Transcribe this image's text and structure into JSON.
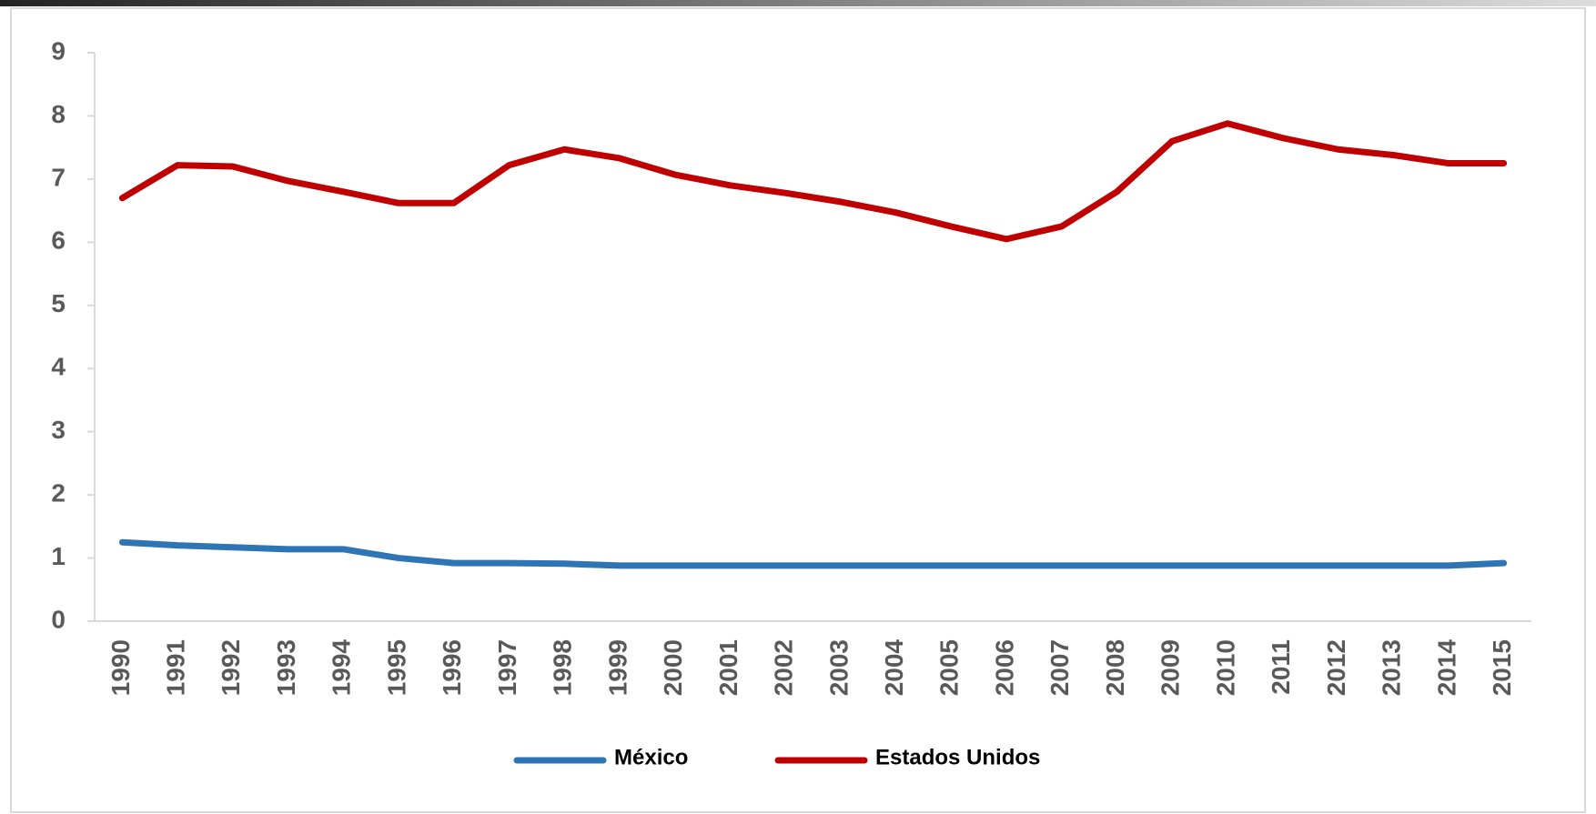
{
  "chart_data": {
    "type": "line",
    "categories": [
      "1990",
      "1991",
      "1992",
      "1993",
      "1994",
      "1995",
      "1996",
      "1997",
      "1998",
      "1999",
      "2000",
      "2001",
      "2002",
      "2003",
      "2004",
      "2005",
      "2006",
      "2007",
      "2008",
      "2009",
      "2010",
      "2011",
      "2012",
      "2013",
      "2014",
      "2015"
    ],
    "series": [
      {
        "name": "México",
        "color": "#2e75b6",
        "values": [
          1.25,
          1.2,
          1.17,
          1.14,
          1.14,
          1.0,
          0.92,
          0.92,
          0.91,
          0.88,
          0.88,
          0.88,
          0.88,
          0.88,
          0.88,
          0.88,
          0.88,
          0.88,
          0.88,
          0.88,
          0.88,
          0.88,
          0.88,
          0.88,
          0.88,
          0.92
        ]
      },
      {
        "name": "Estados Unidos",
        "color": "#c00000",
        "values": [
          6.7,
          7.22,
          7.2,
          6.97,
          6.8,
          6.62,
          6.62,
          7.22,
          7.47,
          7.33,
          7.07,
          6.9,
          6.78,
          6.64,
          6.47,
          6.25,
          6.05,
          6.25,
          6.8,
          7.6,
          7.88,
          7.65,
          7.47,
          7.38,
          7.25,
          7.25
        ]
      }
    ],
    "ylim": [
      0,
      9
    ],
    "yticks": [
      0,
      1,
      2,
      3,
      4,
      5,
      6,
      7,
      8,
      9
    ],
    "legend": "bottom"
  }
}
